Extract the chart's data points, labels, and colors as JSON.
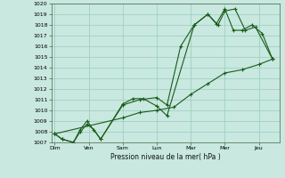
{
  "background_color": "#c8e8e0",
  "grid_color": "#99ccbb",
  "line_color": "#1a5c1a",
  "xlabel": "Pression niveau de la mer( hPa )",
  "xlabels": [
    "Dim",
    "Ven",
    "Sam",
    "Lun",
    "Mar",
    "Mer",
    "Jeu"
  ],
  "ylim": [
    1007,
    1020
  ],
  "yticks": [
    1007,
    1008,
    1009,
    1010,
    1011,
    1012,
    1013,
    1014,
    1015,
    1016,
    1017,
    1018,
    1019,
    1020
  ],
  "line1_x": [
    0.0,
    0.22,
    0.55,
    0.75,
    0.95,
    1.15,
    1.35,
    2.0,
    2.5,
    3.0,
    3.3,
    3.7,
    4.1,
    4.5,
    4.75,
    5.0,
    5.25,
    5.5,
    5.8,
    6.1,
    6.4
  ],
  "line1_y": [
    1007.8,
    1007.3,
    1007.0,
    1008.0,
    1008.7,
    1008.2,
    1007.3,
    1010.5,
    1011.0,
    1011.2,
    1010.5,
    1016.0,
    1018.0,
    1019.0,
    1018.1,
    1019.5,
    1017.5,
    1017.5,
    1018.0,
    1017.2,
    1014.8
  ],
  "line2_x": [
    0.0,
    0.22,
    0.55,
    0.75,
    0.95,
    1.35,
    2.0,
    2.3,
    2.6,
    3.0,
    3.3,
    4.1,
    4.5,
    4.8,
    5.0,
    5.3,
    5.6,
    5.9,
    6.4
  ],
  "line2_y": [
    1007.8,
    1007.3,
    1007.0,
    1008.2,
    1009.0,
    1007.3,
    1010.6,
    1011.1,
    1011.1,
    1010.4,
    1009.5,
    1018.0,
    1019.0,
    1018.0,
    1019.3,
    1019.5,
    1017.5,
    1017.8,
    1014.8
  ],
  "line3_x": [
    0.0,
    2.0,
    2.5,
    3.0,
    3.5,
    4.0,
    4.5,
    5.0,
    5.5,
    6.0,
    6.4
  ],
  "line3_y": [
    1007.8,
    1009.3,
    1009.8,
    1010.0,
    1010.3,
    1011.5,
    1012.5,
    1013.5,
    1013.8,
    1014.3,
    1014.8
  ]
}
